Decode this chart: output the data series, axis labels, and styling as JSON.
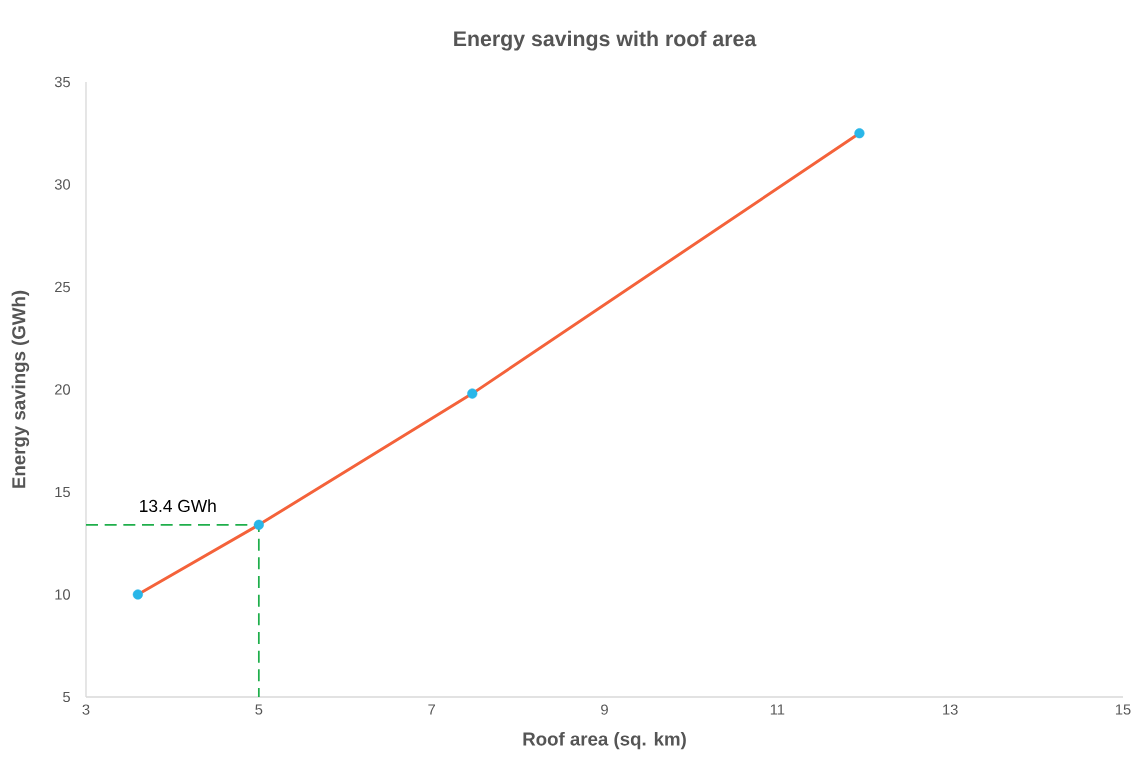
{
  "chart_data": {
    "type": "line",
    "title": "Energy savings with roof area",
    "xlabel": "Roof area (sq. km)",
    "ylabel": "Energy savings (GWh)",
    "xlim": [
      3,
      15
    ],
    "xticks": [
      3,
      5,
      7,
      9,
      11,
      13,
      15
    ],
    "ylim": [
      5,
      35
    ],
    "yticks": [
      5,
      10,
      15,
      20,
      25,
      30,
      35
    ],
    "grid": false,
    "series": [
      {
        "color": "#f4623a",
        "marker": "none",
        "line_style": "solid",
        "x": [
          3.6,
          5,
          7.47,
          11.95
        ],
        "values": [
          10,
          13.4,
          19.8,
          32.5
        ]
      },
      {
        "type": "scatter",
        "color": "#29b6e8",
        "marker": "circle",
        "x": [
          3.6,
          5,
          7.47,
          11.95
        ],
        "values": [
          10,
          13.4,
          19.8,
          32.5
        ]
      },
      {
        "type": "line",
        "color": "#1fae4b",
        "marker": "none",
        "line_style": "dashed",
        "x": [
          3,
          5,
          5
        ],
        "values": [
          13.4,
          13.4,
          5
        ]
      }
    ],
    "annotations": [
      {
        "text": "13.4 GWh",
        "x": 5,
        "y": 13.4
      }
    ]
  }
}
